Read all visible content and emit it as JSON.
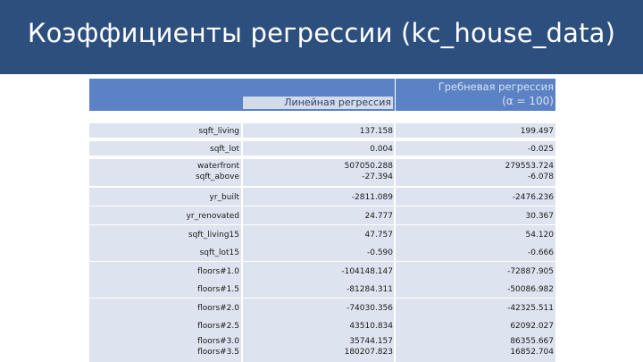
{
  "slide": {
    "title": "Коэффициенты регрессии (kc_house_data)"
  },
  "table": {
    "headers": {
      "linear": "Линейная регрессия",
      "ridge": "Гребневая регрессия",
      "ridge_alpha": "(α = 100)"
    },
    "rows": [
      {
        "label": [
          "sqft_living"
        ],
        "linear": [
          "137.158"
        ],
        "ridge": [
          "199.497"
        ]
      },
      {
        "label": [
          "sqft_lot"
        ],
        "linear": [
          "0.004"
        ],
        "ridge": [
          "-0.025"
        ]
      },
      {
        "label": [
          "waterfront",
          "sqft_above"
        ],
        "linear": [
          "507050.288",
          "-27.394"
        ],
        "ridge": [
          "279553.724",
          "-6.078"
        ]
      },
      {
        "label": [
          "yr_built"
        ],
        "linear": [
          "-2811.089"
        ],
        "ridge": [
          "-2476.236"
        ]
      },
      {
        "label": [
          "yr_renovated"
        ],
        "linear": [
          "24.777"
        ],
        "ridge": [
          "30.367"
        ]
      },
      {
        "label": [
          "sqft_living15"
        ],
        "linear": [
          "47.757"
        ],
        "ridge": [
          "54.120"
        ]
      },
      {
        "label": [
          "sqft_lot15"
        ],
        "linear": [
          "-0.590"
        ],
        "ridge": [
          "-0.666"
        ]
      },
      {
        "label": [
          "floors#1.0"
        ],
        "linear": [
          "-104148.147"
        ],
        "ridge": [
          "-72887.905"
        ]
      },
      {
        "label": [
          "floors#1.5"
        ],
        "linear": [
          "-81284.311"
        ],
        "ridge": [
          "-50086.982"
        ]
      },
      {
        "label": [
          "floors#2.0"
        ],
        "linear": [
          "-74030.356"
        ],
        "ridge": [
          "-42325.511"
        ]
      },
      {
        "label": [
          "floors#2.5"
        ],
        "linear": [
          "43510.834"
        ],
        "ridge": [
          "62092.027"
        ]
      },
      {
        "label": [
          "floors#3.0",
          "floors#3.5"
        ],
        "linear": [
          "35744.157",
          "180207.823"
        ],
        "ridge": [
          "86355.667",
          "16852.704"
        ]
      }
    ]
  },
  "colors": {
    "title_bar": "#2c4f7e",
    "header_fill": "#5b82c4",
    "row_fill": "#dde4ef"
  }
}
